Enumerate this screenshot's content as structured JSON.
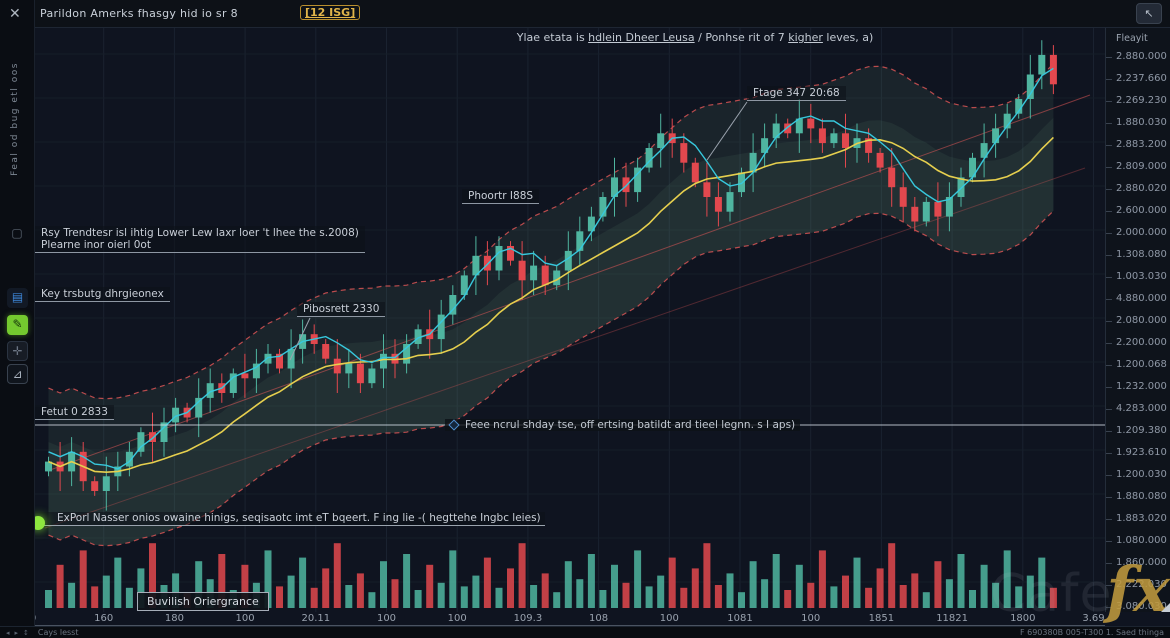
{
  "window": {
    "title": "Parildon Amerks fhasgy hid io sr 8",
    "title_badge": "[12 ISG]",
    "close_label": "✕",
    "corner_button_icon": "↖"
  },
  "sidebar": {
    "vertical_label": "Feal od bug etl oos",
    "note_icon_glyph": "▢",
    "icons": [
      {
        "name": "chart-blue-tool-icon",
        "glyph": "▤"
      },
      {
        "name": "draw-green-tool-icon",
        "glyph": "✎"
      },
      {
        "name": "add-tool-icon",
        "glyph": "✛"
      },
      {
        "name": "ruler-tool-icon",
        "glyph": "⊿"
      }
    ]
  },
  "annotations": {
    "banner_pre": "Ylae etata is ",
    "banner_u1": "hdlein Dheer Leusa",
    "banner_mid": " /  Ponhse rit of 7 ",
    "banner_u2": "kigher",
    "banner_post": " leves, a)",
    "trend_note_line1": "Rsy Trendtesr isl ihtig Lower Lew laxr loer 't lhee the s.2008)",
    "trend_note_line2": "Plearne inor oierl 0ot",
    "key_note": "Key trsbutg dhrgieonex",
    "pivot_label": "Phoortr I88S",
    "pibos_label": "Pibosrett 2330",
    "ftage_label": "Ftage 347 20:68",
    "fetut_label": "Fetut 0 2833",
    "hline_note": "Feee ncrul shday tse, off ertsing batildt ard tieel legnn. s I aps)",
    "entry_note": "ExPorl Nasser onios owaine hinigs, seqisaotc imt eT bqeert. F ing lie -( hegttehe Ingbc leies)",
    "divergence_label": "Buvilish Oriergrance"
  },
  "axis": {
    "price_header": "Fleayit",
    "price_labels": [
      "2.880.000",
      "2.237.660",
      "2.269.230",
      "1.880.030",
      "2.883.200",
      "2.809.000",
      "2.880.020",
      "2.600.000",
      "2.000.000",
      "1.308.080",
      "1.003.030",
      "4.880.000",
      "2.080.000",
      "2.200.000",
      "1.200.068",
      "1.232.000",
      "4.283.000",
      "1.209.380",
      "1.923.610",
      "1.200.030",
      "1.880.080",
      "1.883.020",
      "1.080.000",
      "1.860.000",
      "2.222.030",
      "3.080.030"
    ],
    "time_labels": [
      "0",
      "160",
      "180",
      "100",
      "20.11",
      "100",
      "100",
      "109.3",
      "108",
      "100",
      "1081",
      "100",
      "1851",
      "11821",
      "1800",
      "3.69"
    ]
  },
  "footer": {
    "left_icons": [
      "◂",
      "▸",
      "↕"
    ],
    "left_label": "Cays lesst",
    "right_label": "F 690380B 005-T300 1. Saed thinga"
  },
  "watermark": {
    "gray": "Cafe",
    "gold": "fx"
  },
  "colors": {
    "candle_up": "#4fb5a0",
    "candle_down": "#e2484e",
    "ma_fast": "#37c8dd",
    "ma_slow": "#e6cf4e",
    "envelope": "rgba(229,88,88,0.8)",
    "band_fill": "rgba(105,160,125,0.12)",
    "accent_gold": "#e0b44a",
    "entry_dot": "#8ee63f"
  },
  "chart_data": {
    "type": "candlestick",
    "note": "uptrending OHLC candles with SMA overlays, red dashed envelope, green band fill, volume pane",
    "closes": [
      16,
      14,
      18,
      12,
      10,
      13,
      15,
      18,
      22,
      20,
      24,
      27,
      25,
      29,
      32,
      30,
      34,
      33,
      36,
      38,
      35,
      39,
      42,
      40,
      37,
      34,
      36,
      32,
      35,
      38,
      36,
      40,
      43,
      41,
      46,
      50,
      54,
      58,
      55,
      60,
      57,
      53,
      56,
      52,
      55,
      59,
      63,
      66,
      70,
      74,
      71,
      76,
      80,
      83,
      81,
      77,
      73,
      70,
      67,
      71,
      75,
      79,
      82,
      85,
      83,
      86,
      84,
      81,
      83,
      80,
      82,
      79,
      76,
      72,
      68,
      65,
      69,
      66,
      70,
      74,
      78,
      81,
      84,
      87,
      90,
      95,
      99,
      93
    ],
    "volumes": [
      25,
      60,
      35,
      80,
      30,
      45,
      70,
      28,
      55,
      90,
      32,
      48,
      22,
      65,
      40,
      75,
      25,
      60,
      35,
      80,
      30,
      45,
      70,
      28,
      55,
      90,
      32,
      48,
      22,
      65,
      40,
      75,
      25,
      60,
      35,
      80,
      30,
      45,
      70,
      28,
      55,
      90,
      32,
      48,
      22,
      65,
      40,
      75,
      25,
      60,
      35,
      80,
      30,
      45,
      70,
      28,
      55,
      90,
      32,
      48,
      22,
      65,
      40,
      75,
      25,
      60,
      35,
      80,
      30,
      45,
      70,
      28,
      55,
      90,
      32,
      48,
      22,
      65,
      40,
      75,
      25,
      60,
      35,
      80,
      30,
      45,
      70,
      28
    ],
    "sma_slow_window": 12,
    "sma_fast_window": 4,
    "envelope_offset": 15,
    "ylim": [
      0,
      100
    ],
    "grid": true,
    "legend": "none"
  }
}
